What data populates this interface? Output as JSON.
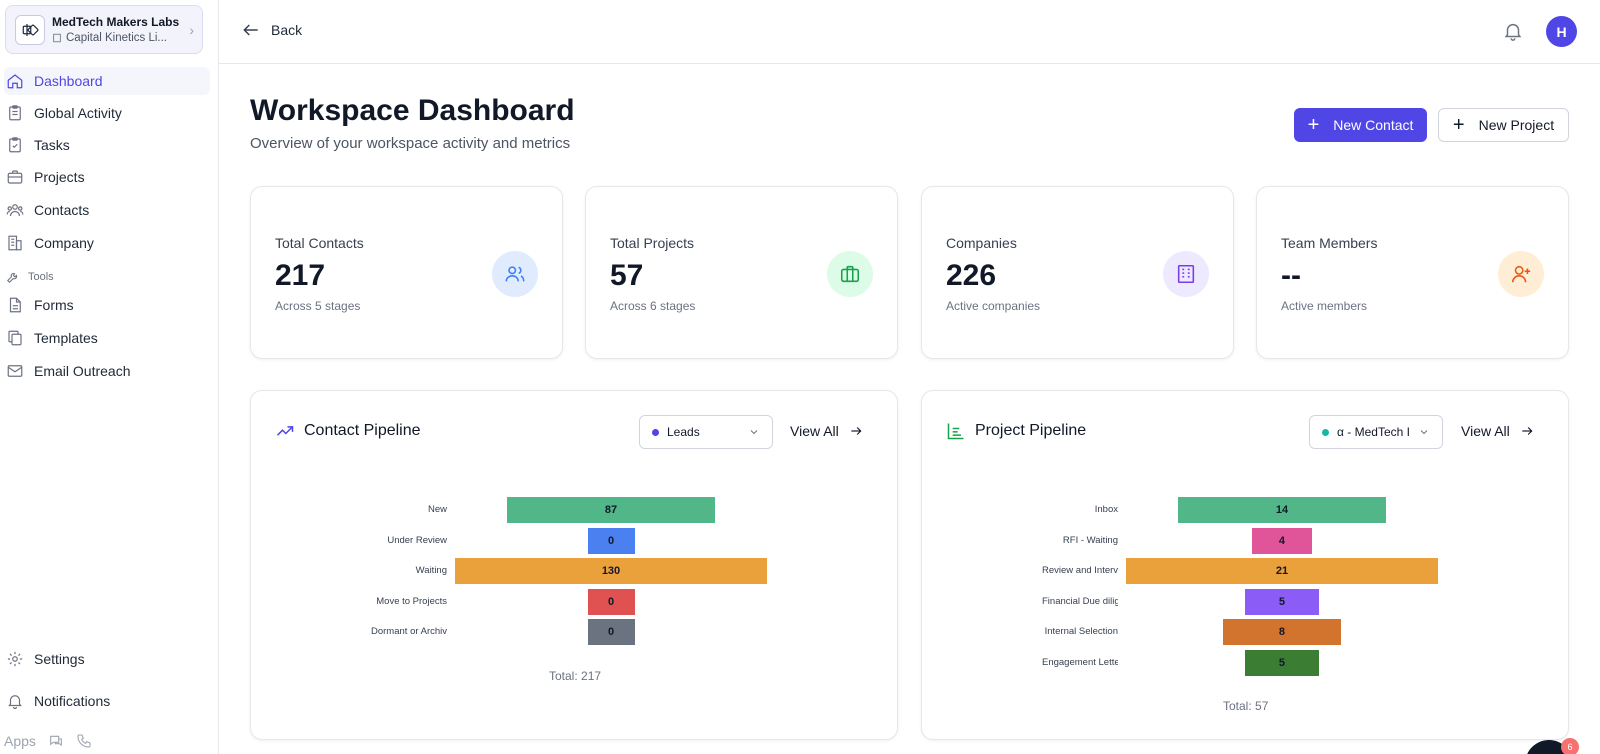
{
  "workspace": {
    "name": "MedTech Makers Labs",
    "company": "Capital Kinetics Li..."
  },
  "sidebar": {
    "items": [
      {
        "label": "Dashboard",
        "icon": "home-icon"
      },
      {
        "label": "Global Activity",
        "icon": "clipboard-icon"
      },
      {
        "label": "Tasks",
        "icon": "clipboard-check-icon"
      },
      {
        "label": "Projects",
        "icon": "briefcase-icon"
      },
      {
        "label": "Contacts",
        "icon": "users-icon"
      },
      {
        "label": "Company",
        "icon": "building-icon"
      }
    ],
    "tools_label": "Tools",
    "tools": [
      {
        "label": "Forms",
        "icon": "file-text-icon"
      },
      {
        "label": "Templates",
        "icon": "copy-icon"
      },
      {
        "label": "Email Outreach",
        "icon": "mail-icon"
      }
    ],
    "settings_label": "Settings",
    "notifications_label": "Notifications",
    "apps_label": "Apps"
  },
  "topbar": {
    "back_label": "Back",
    "avatar_initial": "H"
  },
  "header": {
    "title": "Workspace Dashboard",
    "subtitle": "Overview of your workspace activity and metrics",
    "new_contact_label": "New Contact",
    "new_project_label": "New Project"
  },
  "stats": [
    {
      "label": "Total Contacts",
      "value": "217",
      "sub": "Across 5 stages",
      "icon": "users-icon",
      "color": "#3b82f6",
      "bg": "#e0ebfd"
    },
    {
      "label": "Total Projects",
      "value": "57",
      "sub": "Across 6 stages",
      "icon": "briefcase-icon",
      "color": "#16a34a",
      "bg": "#dcfce7"
    },
    {
      "label": "Companies",
      "value": "226",
      "sub": "Active companies",
      "icon": "building-icon",
      "color": "#7c3aed",
      "bg": "#ede9fe"
    },
    {
      "label": "Team Members",
      "value": "--",
      "sub": "Active members",
      "icon": "user-plus-icon",
      "color": "#ea580c",
      "bg": "#ffedd5"
    }
  ],
  "contact_pipeline": {
    "title": "Contact Pipeline",
    "select_value": "Leads",
    "select_color": "#4f46e5",
    "view_all_label": "View All",
    "total_label": "Total: 217"
  },
  "project_pipeline": {
    "title": "Project Pipeline",
    "select_value": "α - MedTech I",
    "select_color": "#14b8a6",
    "view_all_label": "View All",
    "total_label": "Total: 57"
  },
  "chart_data": [
    {
      "type": "bar",
      "categories": [
        "New",
        "Under Review",
        "Waiting",
        "Move to Projects",
        "Dormant or Archive"
      ],
      "values": [
        87,
        0,
        130,
        0,
        0
      ],
      "colors": [
        "#52b788",
        "#4a80f0",
        "#eba13b",
        "#e05252",
        "#6b7280"
      ],
      "title": "Contact Pipeline"
    },
    {
      "type": "bar",
      "categories": [
        "Inbox",
        "RFI - Waiting",
        "Review and Interview",
        "Financial Due diligence",
        "Internal Selection",
        "Engagement Letter"
      ],
      "values": [
        14,
        4,
        21,
        5,
        8,
        5
      ],
      "colors": [
        "#52b788",
        "#e0559a",
        "#eba13b",
        "#8b5cf6",
        "#d2732e",
        "#3a7d33"
      ],
      "title": "Project Pipeline"
    }
  ],
  "chat": {
    "badge": "6"
  }
}
